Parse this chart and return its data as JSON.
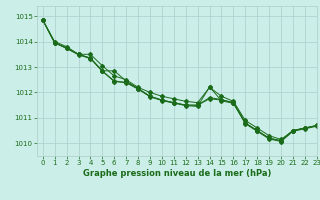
{
  "xlabel": "Graphe pression niveau de la mer (hPa)",
  "xlim": [
    -0.5,
    23
  ],
  "ylim": [
    1009.5,
    1015.4
  ],
  "yticks": [
    1010,
    1011,
    1012,
    1013,
    1014,
    1015
  ],
  "xticks": [
    0,
    1,
    2,
    3,
    4,
    5,
    6,
    7,
    8,
    9,
    10,
    11,
    12,
    13,
    14,
    15,
    16,
    17,
    18,
    19,
    20,
    21,
    22,
    23
  ],
  "background_color": "#cceee8",
  "grid_color": "#aacccc",
  "line_color": "#1a6b1a",
  "lines": [
    [
      1014.85,
      1014.0,
      1013.8,
      1013.5,
      1013.5,
      1013.05,
      1012.65,
      1012.5,
      1012.2,
      1012.0,
      1011.85,
      1011.75,
      1011.65,
      1011.6,
      1012.2,
      1011.85,
      1011.65,
      1010.9,
      1010.6,
      1010.3,
      1010.15,
      1010.5,
      1010.6,
      1010.7
    ],
    [
      1014.85,
      1013.95,
      1013.75,
      1013.5,
      1013.35,
      1012.85,
      1012.45,
      1012.4,
      1012.15,
      1011.85,
      1011.7,
      1011.6,
      1011.5,
      1011.5,
      1011.75,
      1011.7,
      1011.6,
      1010.8,
      1010.5,
      1010.2,
      1010.1,
      1010.5,
      1010.6,
      1010.7
    ],
    [
      1014.85,
      1013.95,
      1013.75,
      1013.5,
      1013.35,
      1012.85,
      1012.85,
      1012.45,
      1012.15,
      1011.85,
      1011.7,
      1011.6,
      1011.5,
      1011.5,
      1011.8,
      1011.72,
      1011.6,
      1010.8,
      1010.5,
      1010.2,
      1010.1,
      1010.5,
      1010.6,
      1010.7
    ],
    [
      1014.85,
      1013.95,
      1013.73,
      1013.48,
      1013.33,
      1012.83,
      1012.43,
      1012.38,
      1012.13,
      1011.83,
      1011.68,
      1011.58,
      1011.48,
      1011.45,
      1012.22,
      1011.67,
      1011.57,
      1010.77,
      1010.47,
      1010.17,
      1010.07,
      1010.47,
      1010.57,
      1010.67
    ]
  ]
}
